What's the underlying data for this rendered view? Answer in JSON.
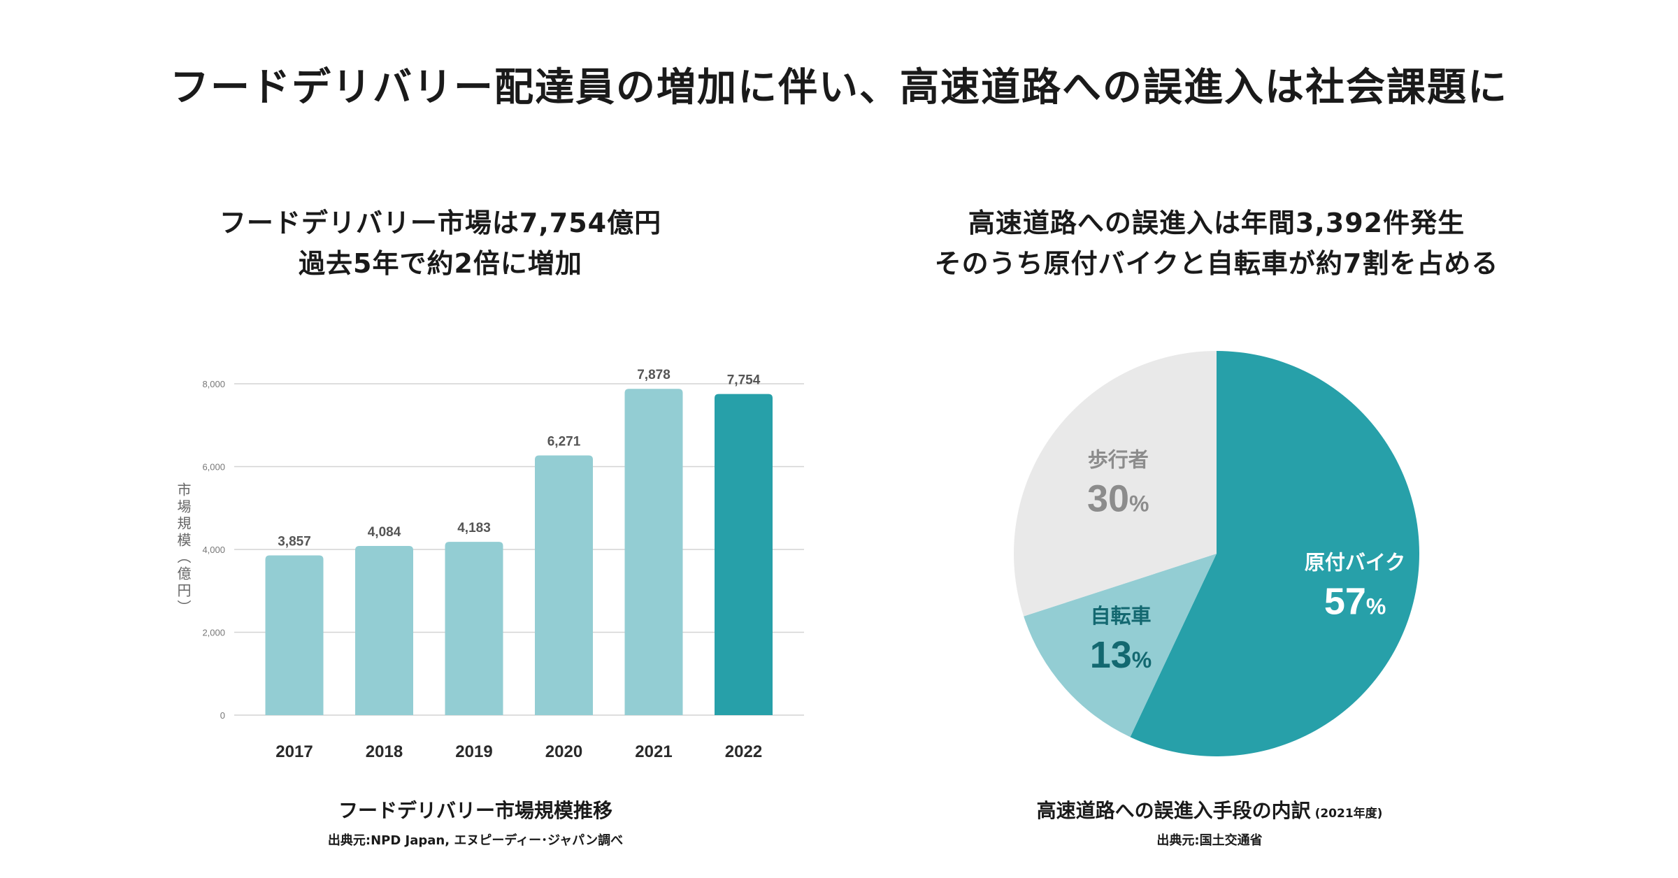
{
  "title": "フードデリバリー配達員の増加に伴い、高速道路への誤進入は社会課題に",
  "left_panel": {
    "heading_line1": "フードデリバリー市場は7,754億円",
    "heading_line2": "過去5年で約2倍に増加",
    "caption": "フードデリバリー市場規模推移",
    "source": "出典元:NPD Japan, エヌピーディー･ジャパン調べ"
  },
  "right_panel": {
    "heading_line1": "高速道路への誤進入は年間3,392件発生",
    "heading_line2": "そのうち原付バイクと自転車が約7割を占める",
    "caption": "高速道路への誤進入手段の内訳",
    "caption_sub": "(2021年度)",
    "source": "出典元:国土交通省"
  },
  "colors": {
    "bar_light": "#93cdd3",
    "bar_highlight": "#27a0a9",
    "pie_moped": "#27a0a9",
    "pie_bicycle": "#93cdd3",
    "pie_pedestrian": "#e9e9e9",
    "label_dark": "#136870",
    "label_gray": "#8c8c8c",
    "grid": "#d4d4d4"
  },
  "chart_data": [
    {
      "type": "bar",
      "title": "フードデリバリー市場規模推移",
      "ylabel": "市場規模（億円）",
      "xlabel": "",
      "categories": [
        "2017",
        "2018",
        "2019",
        "2020",
        "2021",
        "2022"
      ],
      "values": [
        3857,
        4084,
        4183,
        6271,
        7878,
        7754
      ],
      "value_labels": [
        "3,857",
        "4,084",
        "4,183",
        "6,271",
        "7,878",
        "7,754"
      ],
      "highlight_index": 5,
      "ylim": [
        0,
        8000
      ],
      "yticks": [
        0,
        2000,
        4000,
        6000,
        8000
      ],
      "ytick_labels": [
        "0",
        "2,000",
        "4,000",
        "6,000",
        "8,000"
      ],
      "grid": true
    },
    {
      "type": "pie",
      "title": "高速道路への誤進入手段の内訳",
      "slices": [
        {
          "label": "原付バイク",
          "value": 57,
          "value_label": "57",
          "unit": "%"
        },
        {
          "label": "自転車",
          "value": 13,
          "value_label": "13",
          "unit": "%"
        },
        {
          "label": "歩行者",
          "value": 30,
          "value_label": "30",
          "unit": "%"
        }
      ]
    }
  ]
}
